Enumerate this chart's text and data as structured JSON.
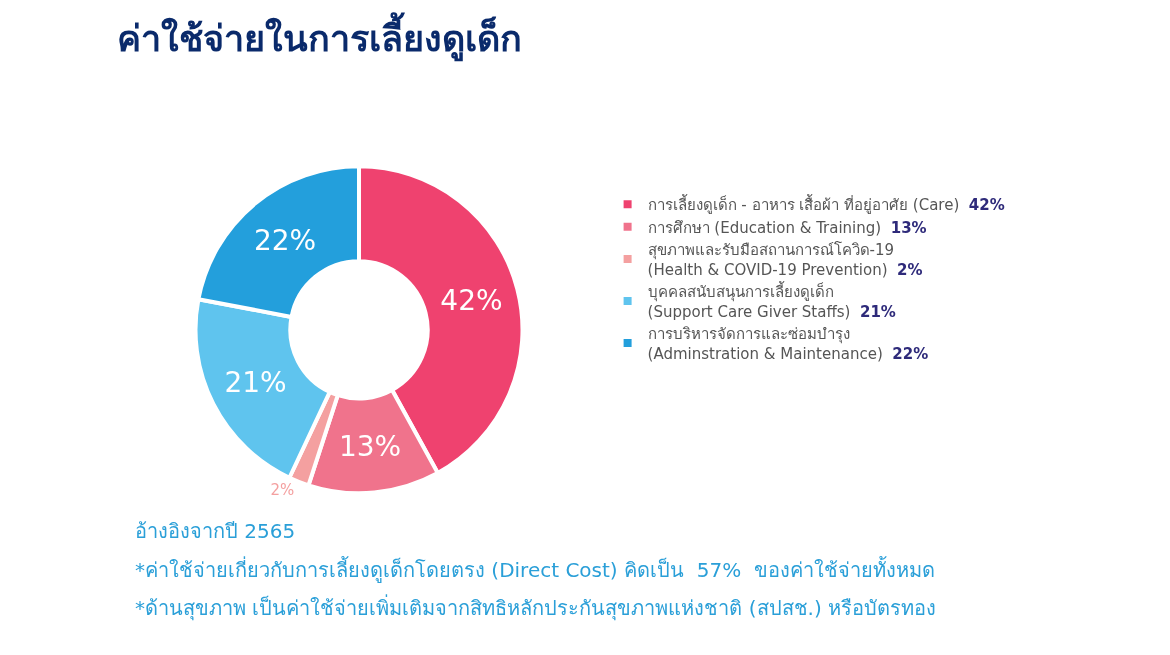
{
  "chart_data": {
    "type": "donut",
    "title": "ค่าใช้จ่ายในการเลี้ยงดูเด็ก",
    "categories": [
      "การเลี้ยงดูเด็ก - อาหาร เสื้อผ้า ที่อยู่อาศัย (Care)",
      "การศึกษา (Education & Training)",
      "สุขภาพและรับมือสถานการณ์โควิด-19\n(Health & COVID-19 Prevention)",
      "บุคคลสนับสนุนการเลี้ยงดูเด็ก\n(Support Care Giver Staffs)",
      "การบริหารจัดการและซ่อมบำรุง\n(Adminstration & Maintenance)"
    ],
    "values": [
      42,
      13,
      2,
      21,
      22
    ],
    "value_labels": [
      "42%",
      "13%",
      "2%",
      "21%",
      "22%"
    ],
    "colors": [
      "#ef426f",
      "#f0738c",
      "#f4a0a0",
      "#5fc4ee",
      "#239fdc"
    ],
    "legend": "right",
    "annotations": [
      "อ้างอิงจากปี 2565",
      "*ค่าใช้จ่ายเกี่ยวกับการเลี้ยงดูเด็กโดยตรง (Direct Cost) คิดเป็น  57%  ของค่าใช้จ่ายทั้งหมด",
      "*ด้านสุขภาพ เป็นค่าใช้จ่ายเพิ่มเติมจากสิทธิหลักประกันสุขภาพแห่งชาติ (สปสช.) หรือบัตรทอง"
    ]
  }
}
